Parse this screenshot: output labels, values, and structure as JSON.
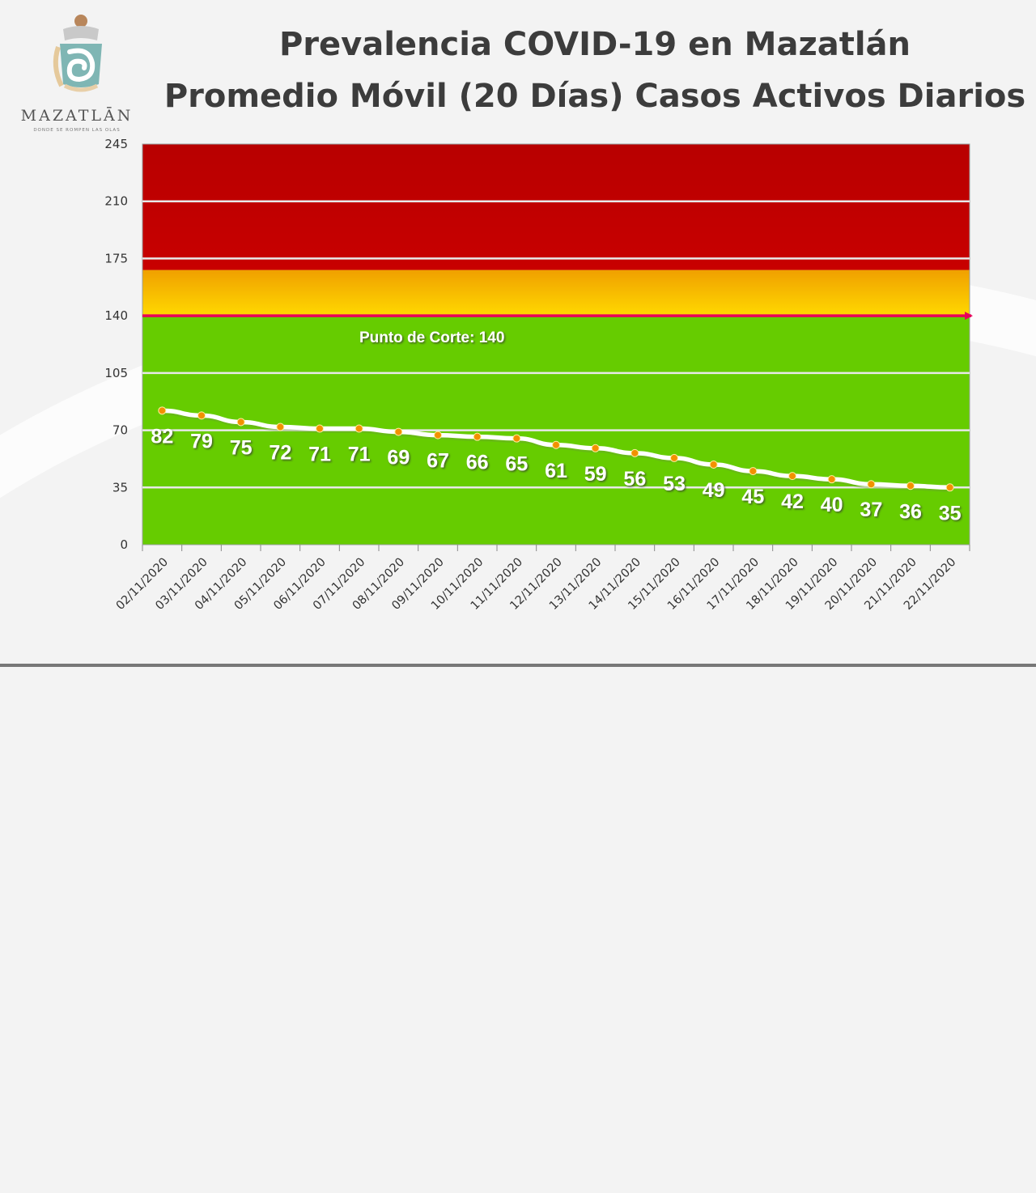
{
  "header": {
    "title_line1": "Prevalencia COVID-19 en Mazatlán",
    "title_line2": "Promedio Móvil (20 Días) Casos Activos Diarios"
  },
  "logo": {
    "name": "MAZATLĀN",
    "tagline": "DONDE SE ROMPEN LAS OLAS"
  },
  "chart_data": {
    "type": "line",
    "title": "Prevalencia COVID-19 en Mazatlán — Promedio Móvil (20 Días) Casos Activos Diarios",
    "xlabel": "",
    "ylabel": "",
    "ylim": [
      0,
      245
    ],
    "yticks": [
      0,
      35,
      70,
      105,
      140,
      175,
      210,
      245
    ],
    "grid": true,
    "legend": "none",
    "categories": [
      "02/11/2020",
      "03/11/2020",
      "04/11/2020",
      "05/11/2020",
      "06/11/2020",
      "07/11/2020",
      "08/11/2020",
      "09/11/2020",
      "10/11/2020",
      "11/11/2020",
      "12/11/2020",
      "13/11/2020",
      "14/11/2020",
      "15/11/2020",
      "16/11/2020",
      "17/11/2020",
      "18/11/2020",
      "19/11/2020",
      "20/11/2020",
      "21/11/2020",
      "22/11/2020"
    ],
    "series": [
      {
        "values": [
          82,
          79,
          75,
          72,
          71,
          71,
          69,
          67,
          66,
          65,
          61,
          59,
          56,
          53,
          49,
          45,
          42,
          40,
          37,
          36,
          35
        ]
      }
    ],
    "zones": [
      {
        "from": 0,
        "to": 140,
        "color": "#66cc00"
      },
      {
        "from": 140,
        "to": 168,
        "color": "#f5c400"
      },
      {
        "from": 168,
        "to": 245,
        "color": "#c00000"
      }
    ],
    "threshold": {
      "value": 140,
      "label": "Punto de Corte: 140",
      "color": "#e8005a"
    },
    "line_color": "#ffffff",
    "marker_color": "#f29100"
  }
}
